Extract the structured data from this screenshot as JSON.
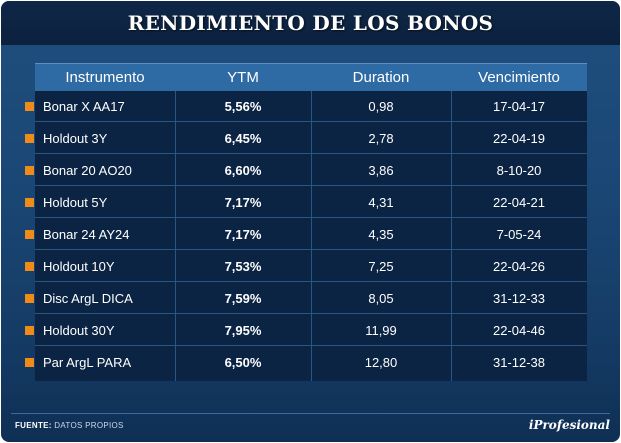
{
  "title": "RENDIMIENTO DE LOS BONOS",
  "colors": {
    "background": "#1a4674",
    "title_bar": "#0b213e",
    "table_header": "#2e6aa3",
    "table_body": "#0b2443",
    "bullet": "#f08a18",
    "text": "#ffffff"
  },
  "chart_data": {
    "type": "table",
    "title": "RENDIMIENTO DE LOS BONOS",
    "columns": [
      "Instrumento",
      "YTM",
      "Duration",
      "Vencimiento"
    ],
    "rows": [
      [
        "Bonar X AA17",
        "5,56%",
        "0,98",
        "17-04-17"
      ],
      [
        "Holdout 3Y",
        "6,45%",
        "2,78",
        "22-04-19"
      ],
      [
        "Bonar 20 AO20",
        "6,60%",
        "3,86",
        "8-10-20"
      ],
      [
        "Holdout 5Y",
        "7,17%",
        "4,31",
        "22-04-21"
      ],
      [
        "Bonar 24 AY24",
        "7,17%",
        "4,35",
        "7-05-24"
      ],
      [
        "Holdout 10Y",
        "7,53%",
        "7,25",
        "22-04-26"
      ],
      [
        "Disc ArgL DICA",
        "7,59%",
        "8,05",
        "31-12-33"
      ],
      [
        "Holdout 30Y",
        "7,95%",
        "11,99",
        "22-04-46"
      ],
      [
        "Par ArgL PARA",
        "6,50%",
        "12,80",
        "31-12-38"
      ]
    ]
  },
  "footer": {
    "source_label": "FUENTE:",
    "source_text": "DATOS PROPIOS",
    "brand": "iProfesional"
  }
}
